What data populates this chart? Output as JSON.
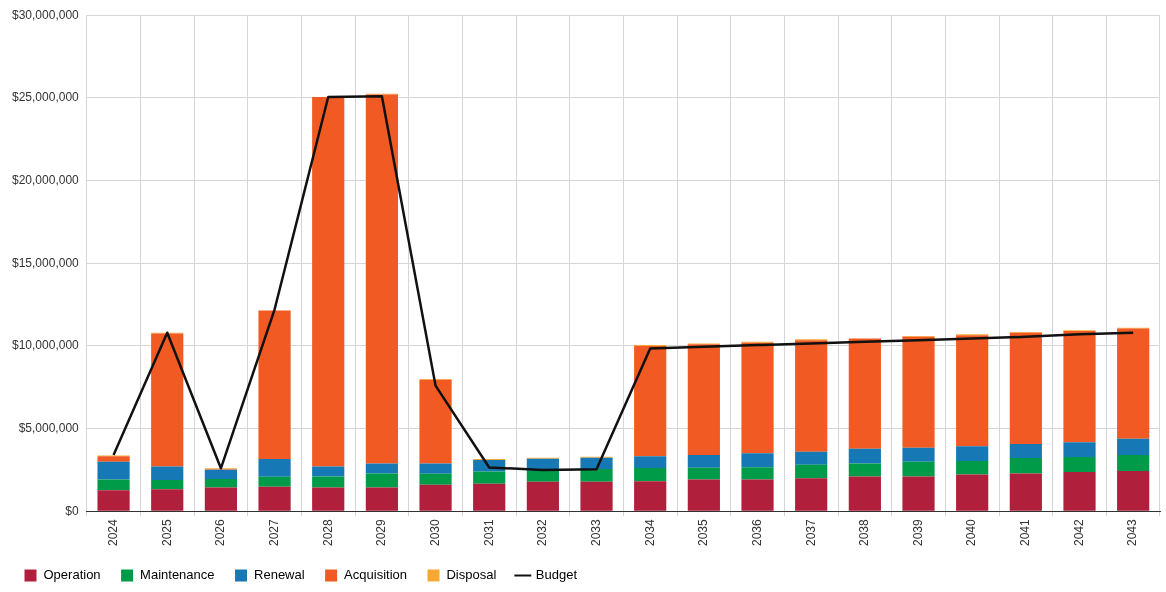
{
  "chart_data": {
    "type": "bar",
    "stacked": true,
    "grid": true,
    "legend": "bottom",
    "categories": [
      "2024",
      "2025",
      "2026",
      "2027",
      "2028",
      "2029",
      "2030",
      "2031",
      "2032",
      "2033",
      "2034",
      "2035",
      "2036",
      "2037",
      "2038",
      "2039",
      "2040",
      "2041",
      "2042",
      "2043"
    ],
    "ylim": [
      0,
      30000000
    ],
    "yticks": [
      {
        "value": 0,
        "label": "$0"
      },
      {
        "value": 5000000,
        "label": "$5,000,000"
      },
      {
        "value": 10000000,
        "label": "$10,000,000"
      },
      {
        "value": 15000000,
        "label": "$15,000,000"
      },
      {
        "value": 20000000,
        "label": "$20,000,000"
      },
      {
        "value": 25000000,
        "label": "$25,000,000"
      },
      {
        "value": 30000000,
        "label": "$30,000,000"
      }
    ],
    "series": [
      {
        "name": "Operation",
        "color": "#b01f3c",
        "values": [
          1270000,
          1330000,
          1440000,
          1490000,
          1440000,
          1440000,
          1600000,
          1670000,
          1780000,
          1780000,
          1820000,
          1930000,
          1930000,
          2000000,
          2110000,
          2110000,
          2220000,
          2290000,
          2380000,
          2440000
        ]
      },
      {
        "name": "Maintenance",
        "color": "#009b48",
        "values": [
          660000,
          560000,
          520000,
          600000,
          670000,
          850000,
          670000,
          730000,
          660000,
          780000,
          800000,
          710000,
          740000,
          820000,
          780000,
          890000,
          820000,
          930000,
          910000,
          960000
        ]
      },
      {
        "name": "Renewal",
        "color": "#1679b5",
        "values": [
          1070000,
          820000,
          550000,
          1070000,
          600000,
          600000,
          620000,
          710000,
          740000,
          680000,
          710000,
          760000,
          840000,
          780000,
          890000,
          840000,
          890000,
          850000,
          890000,
          980000
        ]
      },
      {
        "name": "Acquisition",
        "color": "#f15a22",
        "values": [
          330000,
          8040000,
          40000,
          8990000,
          22340000,
          22310000,
          5060000,
          0,
          0,
          0,
          6670000,
          6700000,
          6690000,
          6750000,
          6670000,
          6710000,
          6720000,
          6730000,
          6720000,
          6670000
        ]
      },
      {
        "name": "Disposal",
        "color": "#f7a833",
        "values": [
          50000,
          50000,
          50000,
          null,
          null,
          50000,
          50000,
          50000,
          60000,
          60000,
          50000,
          50000,
          50000,
          50000,
          null,
          50000,
          50000,
          50000,
          50000,
          50000
        ]
      },
      {
        "name": "Budget",
        "type": "line",
        "color": "#111111",
        "marker": "none",
        "values": [
          3400000,
          10800000,
          2600000,
          12200000,
          25050000,
          25100000,
          7600000,
          2650000,
          2500000,
          2550000,
          9850000,
          9950000,
          10050000,
          10150000,
          10250000,
          10350000,
          10450000,
          10550000,
          10700000,
          10800000
        ]
      }
    ]
  }
}
